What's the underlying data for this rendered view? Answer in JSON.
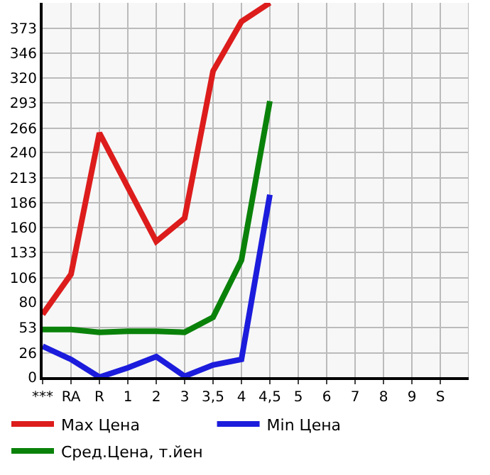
{
  "chart_data": {
    "type": "line",
    "categories": [
      "***",
      "RA",
      "R",
      "1",
      "2",
      "3",
      "3,5",
      "4",
      "4,5",
      "5",
      "6",
      "7",
      "8",
      "9",
      "S"
    ],
    "series": [
      {
        "name": "Max Цена",
        "color": "#dd1c1c",
        "values": [
          67,
          110,
          261,
          203,
          145,
          170,
          327,
          380,
          400,
          null,
          null,
          null,
          null,
          null,
          null
        ]
      },
      {
        "name": "Min Цена",
        "color": "#1c1cdd",
        "values": [
          33,
          19,
          0,
          10,
          22,
          1,
          13,
          19,
          195,
          null,
          null,
          null,
          null,
          null,
          null
        ]
      },
      {
        "name": "Сред.Цена, т.йен",
        "color": "#0a820a",
        "values": [
          51,
          51,
          48,
          49,
          49,
          48,
          64,
          125,
          295,
          null,
          null,
          null,
          null,
          null,
          null
        ]
      }
    ],
    "ylim": [
      0,
      400
    ],
    "yticks": [
      0,
      26,
      53,
      80,
      106,
      133,
      160,
      186,
      213,
      240,
      266,
      293,
      320,
      346,
      373
    ],
    "grid": true,
    "legend": "bottom",
    "marker": "none",
    "line_style": "solid"
  }
}
